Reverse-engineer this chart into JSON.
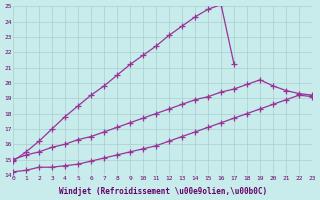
{
  "bg_color": "#c8ebeb",
  "grid_color": "#aacfcf",
  "line_color": "#993399",
  "xlabel": "Windjet (Refroidissement \\u00e9olien,\\u00b0C)",
  "xmin": 0,
  "xmax": 23,
  "ymin": 14,
  "ymax": 25,
  "curve1_x": [
    0,
    1,
    2,
    3,
    4,
    5,
    6,
    7,
    8,
    9,
    10,
    11,
    12,
    13,
    14,
    15,
    16,
    17
  ],
  "curve1_y": [
    14.9,
    15.5,
    16.2,
    17.0,
    17.8,
    18.5,
    19.2,
    19.8,
    20.5,
    21.2,
    21.8,
    22.4,
    23.1,
    23.7,
    24.3,
    24.8,
    25.1,
    21.2
  ],
  "curve2_x": [
    0,
    1,
    2,
    3,
    4,
    5,
    6,
    7,
    8,
    9,
    10,
    11,
    12,
    13,
    14,
    15,
    16,
    17,
    18,
    19,
    20,
    21,
    22,
    23
  ],
  "curve2_y": [
    15.0,
    15.3,
    15.5,
    15.8,
    16.0,
    16.3,
    16.5,
    16.8,
    17.1,
    17.4,
    17.7,
    18.0,
    18.3,
    18.6,
    18.9,
    19.1,
    19.4,
    19.6,
    19.9,
    20.2,
    19.8,
    19.5,
    19.3,
    19.2
  ],
  "curve3_x": [
    0,
    1,
    2,
    3,
    4,
    5,
    6,
    7,
    8,
    9,
    10,
    11,
    12,
    13,
    14,
    15,
    16,
    17,
    18,
    19,
    20,
    21,
    22,
    23
  ],
  "curve3_y": [
    14.2,
    14.3,
    14.5,
    14.5,
    14.6,
    14.7,
    14.9,
    15.1,
    15.3,
    15.5,
    15.7,
    15.9,
    16.2,
    16.5,
    16.8,
    17.1,
    17.4,
    17.7,
    18.0,
    18.3,
    18.6,
    18.9,
    19.2,
    19.1
  ]
}
